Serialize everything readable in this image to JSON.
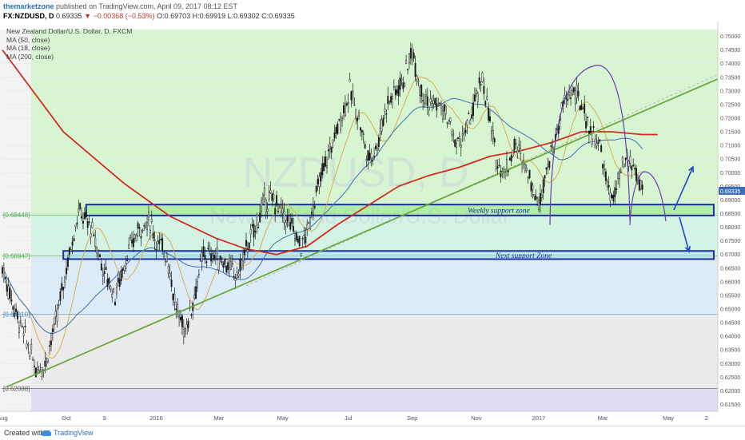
{
  "header": {
    "brand": "themarketzone",
    "published": " published on TradingView.com, April 09, 2017 08:12 EST",
    "symbol": "FX:NZDUSD, D",
    "last": "0.69335",
    "change": "▼ −0.00368 (−0.53%)",
    "ohlc": "O:0.69703 H:0.69919 L:0.69302 C:0.69335"
  },
  "legend": {
    "title": "New Zealand Dollar/U.S. Dollar, D, FXCM",
    "lines": [
      "MA (50, close)",
      "MA (18, close)",
      "MA (200, close)"
    ]
  },
  "footer": {
    "created": "Created with",
    "brand": "TradingView"
  },
  "colors": {
    "zone_green": "#d7f5d1",
    "zone_blue": "#dcebf8",
    "zone_gray": "#ebebeb",
    "zone_purple": "#dedcf5",
    "candle": "#1a1a1a",
    "ma200": "#d22b1f",
    "ma50": "#3f6fb8",
    "ma18": "#d8a840",
    "trendline": "#6aa83c",
    "arc": "#6b3fb0",
    "arrow": "#2347c8"
  },
  "chart_data": {
    "type": "candlestick",
    "watermark": "NZDUSD, D",
    "watermark_sub": "New Zealand Dollar/U.S. Dollar",
    "ylim": [
      0.6125,
      0.7525
    ],
    "y_ticks": [
      "0.75000",
      "0.74500",
      "0.74000",
      "0.73500",
      "0.73000",
      "0.72500",
      "0.72000",
      "0.71500",
      "0.71000",
      "0.70500",
      "0.70000",
      "0.69500",
      "0.69000",
      "0.68500",
      "0.68000",
      "0.67500",
      "0.67000",
      "0.66500",
      "0.66000",
      "0.65500",
      "0.65000",
      "0.64500",
      "0.64000",
      "0.63500",
      "0.63000",
      "0.62500",
      "0.62000",
      "0.61500"
    ],
    "x_ticks": [
      {
        "label": "Aug",
        "i": 0
      },
      {
        "label": "Oct",
        "i": 42
      },
      {
        "label": "9",
        "i": 67
      },
      {
        "label": "2016",
        "i": 101
      },
      {
        "label": "Mar",
        "i": 142
      },
      {
        "label": "May",
        "i": 184
      },
      {
        "label": "Jul",
        "i": 227
      },
      {
        "label": "Sep",
        "i": 269
      },
      {
        "label": "Nov",
        "i": 311
      },
      {
        "label": "2017",
        "i": 352
      },
      {
        "label": "Mar",
        "i": 394
      },
      {
        "label": "May",
        "i": 437
      },
      {
        "label": "2",
        "i": 462
      }
    ],
    "n_bars": 470,
    "last_index": 420,
    "price_anchors": [
      [
        0,
        0.665
      ],
      [
        8,
        0.65
      ],
      [
        16,
        0.638
      ],
      [
        22,
        0.628
      ],
      [
        28,
        0.63
      ],
      [
        35,
        0.645
      ],
      [
        42,
        0.665
      ],
      [
        50,
        0.686
      ],
      [
        58,
        0.68
      ],
      [
        66,
        0.665
      ],
      [
        74,
        0.655
      ],
      [
        82,
        0.67
      ],
      [
        90,
        0.68
      ],
      [
        97,
        0.682
      ],
      [
        101,
        0.675
      ],
      [
        108,
        0.67
      ],
      [
        114,
        0.65
      ],
      [
        120,
        0.642
      ],
      [
        126,
        0.655
      ],
      [
        132,
        0.67
      ],
      [
        138,
        0.67
      ],
      [
        146,
        0.667
      ],
      [
        154,
        0.662
      ],
      [
        160,
        0.672
      ],
      [
        166,
        0.68
      ],
      [
        172,
        0.69
      ],
      [
        178,
        0.69
      ],
      [
        184,
        0.685
      ],
      [
        190,
        0.68
      ],
      [
        196,
        0.673
      ],
      [
        200,
        0.678
      ],
      [
        204,
        0.688
      ],
      [
        210,
        0.7
      ],
      [
        216,
        0.71
      ],
      [
        222,
        0.72
      ],
      [
        228,
        0.73
      ],
      [
        234,
        0.72
      ],
      [
        240,
        0.705
      ],
      [
        246,
        0.71
      ],
      [
        252,
        0.725
      ],
      [
        258,
        0.73
      ],
      [
        264,
        0.735
      ],
      [
        269,
        0.745
      ],
      [
        274,
        0.732
      ],
      [
        280,
        0.725
      ],
      [
        286,
        0.725
      ],
      [
        292,
        0.72
      ],
      [
        298,
        0.71
      ],
      [
        304,
        0.715
      ],
      [
        310,
        0.725
      ],
      [
        315,
        0.735
      ],
      [
        318,
        0.725
      ],
      [
        324,
        0.705
      ],
      [
        330,
        0.7
      ],
      [
        336,
        0.71
      ],
      [
        342,
        0.705
      ],
      [
        348,
        0.695
      ],
      [
        352,
        0.688
      ],
      [
        356,
        0.7
      ],
      [
        362,
        0.71
      ],
      [
        368,
        0.725
      ],
      [
        374,
        0.73
      ],
      [
        380,
        0.725
      ],
      [
        386,
        0.715
      ],
      [
        392,
        0.71
      ],
      [
        397,
        0.695
      ],
      [
        401,
        0.69
      ],
      [
        406,
        0.7
      ],
      [
        410,
        0.705
      ],
      [
        414,
        0.702
      ],
      [
        420,
        0.6933
      ]
    ],
    "key_levels": [
      {
        "label": "0.68448",
        "value": 0.68448,
        "color": "#4caf50"
      },
      {
        "label": "0.66947",
        "value": 0.66947,
        "color": "#4caf50"
      },
      {
        "label": "0.64810",
        "value": 0.6481,
        "color": "#3a86c8"
      },
      {
        "label": "0.62088",
        "value": 0.62088,
        "color": "#555555"
      }
    ],
    "last_price_label": "0.69335",
    "zones": [
      {
        "label": "Weekly support zone",
        "from_i": 55,
        "to_i": 470,
        "lo": 0.6843,
        "hi": 0.6883
      },
      {
        "label": "Next support Zone",
        "from_i": 40,
        "to_i": 470,
        "lo": 0.6683,
        "hi": 0.6713
      }
    ],
    "trendline": {
      "from": [
        3,
        0.6215
      ],
      "to": [
        470,
        0.7345
      ]
    }
  }
}
